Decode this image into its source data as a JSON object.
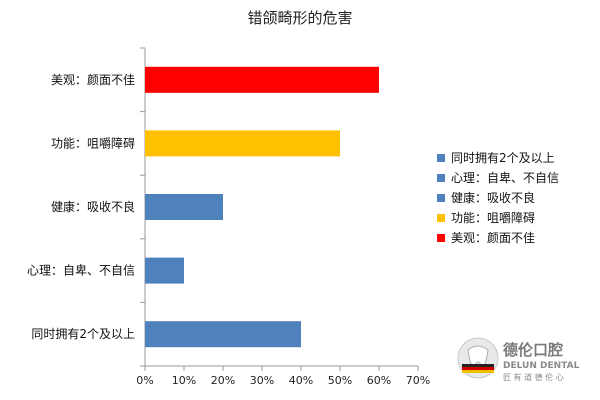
{
  "chart_data": {
    "type": "bar",
    "orientation": "horizontal",
    "title": "错颌畸形的危害",
    "categories": [
      "美观：颜面不佳",
      "功能：咀嚼障碍",
      "健康：吸收不良",
      "心理：自卑、不自信",
      "同时拥有2个及以上"
    ],
    "values": [
      60,
      50,
      20,
      10,
      40
    ],
    "colors": [
      "#ff0000",
      "#ffc000",
      "#4f81bd",
      "#4f81bd",
      "#4f81bd"
    ],
    "xlim": [
      0,
      70
    ],
    "xticks": [
      0,
      10,
      20,
      30,
      40,
      50,
      60,
      70
    ],
    "tick_suffix": "%",
    "grid": false,
    "legend": {
      "placement": "right",
      "entries": [
        {
          "label": "同时拥有2个及以上",
          "color": "#4f81bd"
        },
        {
          "label": "心理：自卑、不自信",
          "color": "#4f81bd"
        },
        {
          "label": "健康：吸收不良",
          "color": "#4f81bd"
        },
        {
          "label": "功能：咀嚼障碍",
          "color": "#ffc000"
        },
        {
          "label": "美观：颜面不佳",
          "color": "#ff0000"
        }
      ]
    }
  },
  "watermark": {
    "name": "德伦口腔",
    "sub": "DELUN DENTAL",
    "slogan": "匠 有 道 德 伦 心"
  }
}
